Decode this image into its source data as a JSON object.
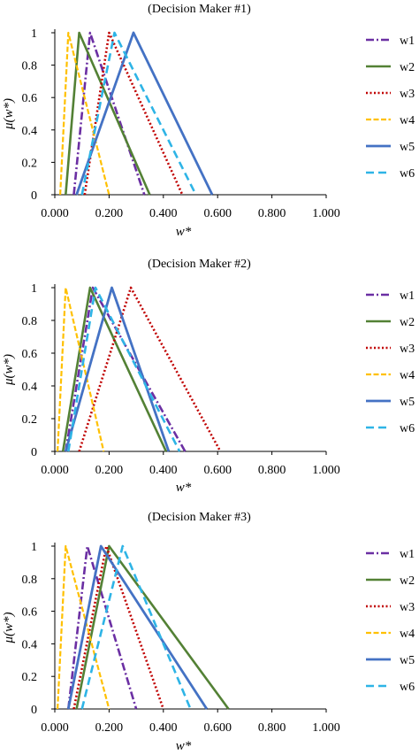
{
  "colors": {
    "w1": "#6b2fa3",
    "w2": "#538135",
    "w3": "#c00000",
    "w4": "#ffc000",
    "w5": "#4472c4",
    "w6": "#2eb4e6"
  },
  "chart_data": [
    {
      "type": "line",
      "title": "(Decision Maker #1)",
      "xlabel": "w*",
      "ylabel": "μ(w*)",
      "xlim": [
        0,
        1
      ],
      "ylim": [
        0,
        1
      ],
      "xticks": [
        "0.000",
        "0.200",
        "0.400",
        "0.600",
        "0.800",
        "1.000"
      ],
      "yticks": [
        "0",
        "0.2",
        "0.4",
        "0.6",
        "0.8",
        "1"
      ],
      "legend_position": "right",
      "series": [
        {
          "name": "w1",
          "x": [
            0.07,
            0.13,
            0.33
          ],
          "y": [
            0,
            1,
            0
          ]
        },
        {
          "name": "w2",
          "x": [
            0.04,
            0.09,
            0.35
          ],
          "y": [
            0,
            1,
            0
          ]
        },
        {
          "name": "w3",
          "x": [
            0.11,
            0.2,
            0.47
          ],
          "y": [
            0,
            1,
            0
          ]
        },
        {
          "name": "w4",
          "x": [
            0.02,
            0.05,
            0.2
          ],
          "y": [
            0,
            1,
            0
          ]
        },
        {
          "name": "w5",
          "x": [
            0.08,
            0.29,
            0.58
          ],
          "y": [
            0,
            1,
            0
          ]
        },
        {
          "name": "w6",
          "x": [
            0.1,
            0.22,
            0.52
          ],
          "y": [
            0,
            1,
            0
          ]
        }
      ]
    },
    {
      "type": "line",
      "title": "(Decision Maker #2)",
      "xlabel": "w*",
      "ylabel": "μ(w*)",
      "xlim": [
        0,
        1
      ],
      "ylim": [
        0,
        1
      ],
      "xticks": [
        "0.000",
        "0.200",
        "0.400",
        "0.600",
        "0.800",
        "1.000"
      ],
      "yticks": [
        "0",
        "0.2",
        "0.4",
        "0.6",
        "0.8",
        "1"
      ],
      "legend_position": "right",
      "series": [
        {
          "name": "w1",
          "x": [
            0.04,
            0.14,
            0.48
          ],
          "y": [
            0,
            1,
            0
          ]
        },
        {
          "name": "w2",
          "x": [
            0.03,
            0.13,
            0.41
          ],
          "y": [
            0,
            1,
            0
          ]
        },
        {
          "name": "w3",
          "x": [
            0.09,
            0.28,
            0.61
          ],
          "y": [
            0,
            1,
            0
          ]
        },
        {
          "name": "w4",
          "x": [
            0.01,
            0.04,
            0.18
          ],
          "y": [
            0,
            1,
            0
          ]
        },
        {
          "name": "w5",
          "x": [
            0.04,
            0.21,
            0.42
          ],
          "y": [
            0,
            1,
            0
          ]
        },
        {
          "name": "w6",
          "x": [
            0.05,
            0.15,
            0.46
          ],
          "y": [
            0,
            1,
            0
          ]
        }
      ]
    },
    {
      "type": "line",
      "title": "(Decision Maker #3)",
      "xlabel": "w*",
      "ylabel": "μ(w*)",
      "xlim": [
        0,
        1
      ],
      "ylim": [
        0,
        1
      ],
      "xticks": [
        "0.000",
        "0.200",
        "0.400",
        "0.600",
        "0.800",
        "1.000"
      ],
      "yticks": [
        "0",
        "0.2",
        "0.4",
        "0.6",
        "0.8",
        "1"
      ],
      "legend_position": "right",
      "series": [
        {
          "name": "w1",
          "x": [
            0.05,
            0.12,
            0.3
          ],
          "y": [
            0,
            1,
            0
          ]
        },
        {
          "name": "w2",
          "x": [
            0.08,
            0.2,
            0.64
          ],
          "y": [
            0,
            1,
            0
          ]
        },
        {
          "name": "w3",
          "x": [
            0.07,
            0.19,
            0.4
          ],
          "y": [
            0,
            1,
            0
          ]
        },
        {
          "name": "w4",
          "x": [
            0.01,
            0.04,
            0.2
          ],
          "y": [
            0,
            1,
            0
          ]
        },
        {
          "name": "w5",
          "x": [
            0.05,
            0.17,
            0.56
          ],
          "y": [
            0,
            1,
            0
          ]
        },
        {
          "name": "w6",
          "x": [
            0.1,
            0.25,
            0.5
          ],
          "y": [
            0,
            1,
            0
          ]
        }
      ]
    }
  ]
}
